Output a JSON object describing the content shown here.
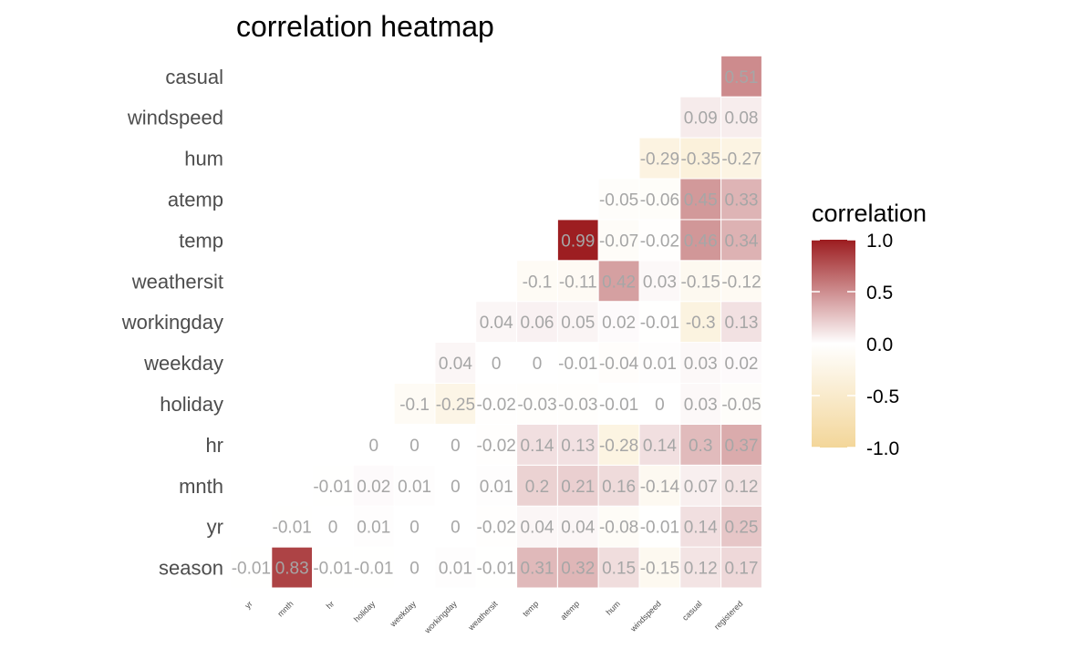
{
  "chart_data": {
    "type": "heatmap",
    "title": "correlation heatmap",
    "x_categories": [
      "yr",
      "mnth",
      "hr",
      "holiday",
      "weekday",
      "workingday",
      "weathersit",
      "temp",
      "atemp",
      "hum",
      "windspeed",
      "casual",
      "registered"
    ],
    "y_categories": [
      "season",
      "yr",
      "mnth",
      "hr",
      "holiday",
      "weekday",
      "workingday",
      "weathersit",
      "temp",
      "atemp",
      "hum",
      "windspeed",
      "casual"
    ],
    "values": [
      [
        -0.01,
        0.83,
        -0.01,
        -0.01,
        0,
        0.01,
        -0.01,
        0.31,
        0.32,
        0.15,
        -0.15,
        0.12,
        0.17
      ],
      [
        -0.01,
        0,
        0.01,
        0,
        0,
        -0.02,
        0.04,
        0.04,
        -0.08,
        -0.01,
        0.14,
        0.25
      ],
      [
        -0.01,
        0.02,
        0.01,
        0,
        0.01,
        0.2,
        0.21,
        0.16,
        -0.14,
        0.07,
        0.12
      ],
      [
        0,
        0,
        0,
        -0.02,
        0.14,
        0.13,
        -0.28,
        0.14,
        0.3,
        0.37
      ],
      [
        -0.1,
        -0.25,
        -0.02,
        -0.03,
        -0.03,
        -0.01,
        0,
        0.03,
        -0.05
      ],
      [
        0.04,
        0,
        0,
        -0.01,
        -0.04,
        0.01,
        0.03,
        0.02
      ],
      [
        0.04,
        0.06,
        0.05,
        0.02,
        -0.01,
        -0.3,
        0.13
      ],
      [
        -0.1,
        -0.11,
        0.42,
        0.03,
        -0.15,
        -0.12
      ],
      [
        0.99,
        -0.07,
        -0.02,
        0.46,
        0.34
      ],
      [
        -0.05,
        -0.06,
        0.45,
        0.33
      ],
      [
        -0.29,
        -0.35,
        -0.27
      ],
      [
        0.09,
        0.08
      ],
      [
        0.51
      ]
    ],
    "color_scale": {
      "low": "#f3d699",
      "mid": "#ffffff",
      "high": "#9c1c1f",
      "domain": [
        -1,
        1
      ]
    },
    "legend": {
      "title": "correlation",
      "ticks": [
        "1.0",
        "0.5",
        "0.0",
        "-0.5",
        "-1.0"
      ],
      "tick_values": [
        1,
        0.5,
        0,
        -0.5,
        -1
      ],
      "position": "right"
    }
  }
}
